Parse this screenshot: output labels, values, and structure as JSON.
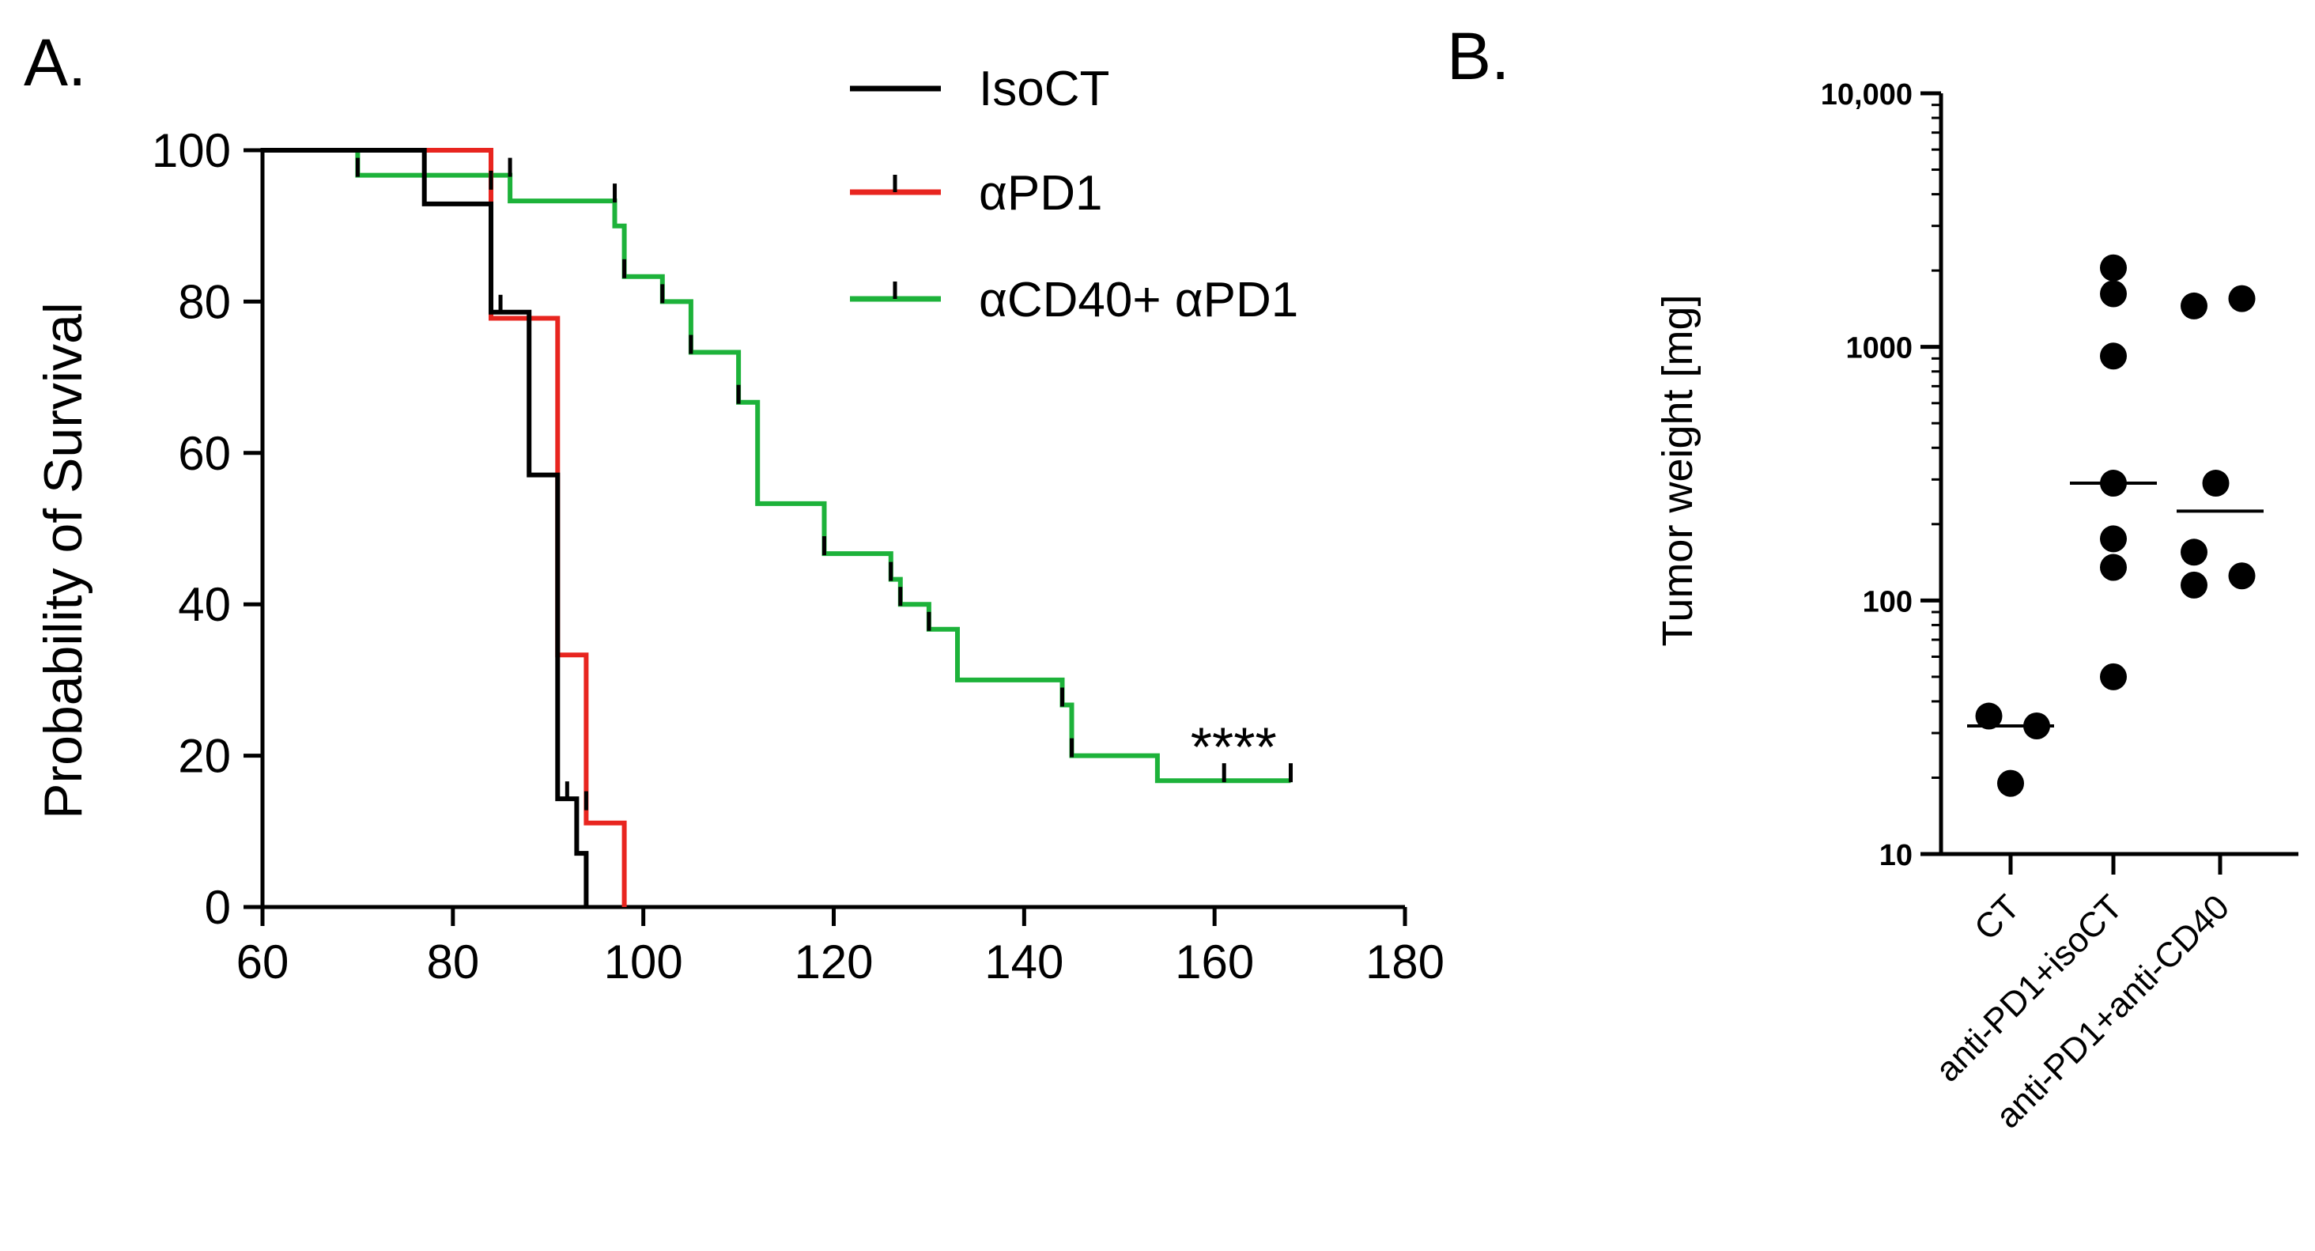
{
  "chart_data": [
    {
      "type": "line",
      "panel_label": "A.",
      "title": "",
      "xlabel": "",
      "ylabel": "Probability of Survival",
      "xlim": [
        60,
        180
      ],
      "ylim": [
        0,
        100
      ],
      "xticks": [
        60,
        80,
        100,
        120,
        140,
        160,
        180
      ],
      "yticks": [
        0,
        20,
        40,
        60,
        80,
        100
      ],
      "legend_position": "top",
      "annotation": "****",
      "annotation_pos": {
        "x": 162,
        "y": 22
      },
      "series": [
        {
          "name": "IsoCT",
          "color": "#000000",
          "steps": [
            [
              60,
              100
            ],
            [
              77,
              100
            ],
            [
              77,
              92.9
            ],
            [
              84,
              92.9
            ],
            [
              84,
              78.6
            ],
            [
              88,
              78.6
            ],
            [
              88,
              57.1
            ],
            [
              91,
              57.1
            ],
            [
              91,
              14.3
            ],
            [
              93,
              14.3
            ],
            [
              93,
              7.1
            ],
            [
              94,
              7.1
            ],
            [
              94,
              0
            ]
          ],
          "censored": [
            [
              85,
              78.6
            ],
            [
              92,
              14.3
            ]
          ]
        },
        {
          "name": "αPD1",
          "color": "#e8251f",
          "steps": [
            [
              60,
              100
            ],
            [
              84,
              100
            ],
            [
              84,
              77.8
            ],
            [
              91,
              77.8
            ],
            [
              91,
              33.3
            ],
            [
              94,
              33.3
            ],
            [
              94,
              11.1
            ],
            [
              98,
              11.1
            ],
            [
              98,
              0
            ]
          ],
          "censored": [
            [
              84,
              95
            ],
            [
              94,
              13
            ]
          ]
        },
        {
          "name": "αCD40+ αPD1",
          "color": "#1db23a",
          "steps": [
            [
              60,
              100
            ],
            [
              70,
              100
            ],
            [
              70,
              96.7
            ],
            [
              86,
              96.7
            ],
            [
              86,
              93.3
            ],
            [
              97,
              93.3
            ],
            [
              97,
              90
            ],
            [
              98,
              90
            ],
            [
              98,
              83.3
            ],
            [
              102,
              83.3
            ],
            [
              102,
              80
            ],
            [
              105,
              80
            ],
            [
              105,
              73.3
            ],
            [
              110,
              73.3
            ],
            [
              110,
              66.7
            ],
            [
              112,
              66.7
            ],
            [
              112,
              53.3
            ],
            [
              119,
              53.3
            ],
            [
              119,
              46.7
            ],
            [
              126,
              46.7
            ],
            [
              126,
              43.3
            ],
            [
              127,
              43.3
            ],
            [
              127,
              40
            ],
            [
              130,
              40
            ],
            [
              130,
              36.7
            ],
            [
              133,
              36.7
            ],
            [
              133,
              30
            ],
            [
              144,
              30
            ],
            [
              144,
              26.7
            ],
            [
              145,
              26.7
            ],
            [
              145,
              20
            ],
            [
              154,
              20
            ],
            [
              154,
              16.7
            ],
            [
              168,
              16.7
            ]
          ],
          "censored": [
            [
              70,
              96.7
            ],
            [
              86,
              96.7
            ],
            [
              97,
              93.3
            ],
            [
              98,
              83.3
            ],
            [
              102,
              80
            ],
            [
              105,
              73.3
            ],
            [
              110,
              66.7
            ],
            [
              119,
              46.7
            ],
            [
              126,
              43.3
            ],
            [
              127,
              40
            ],
            [
              130,
              36.7
            ],
            [
              144,
              26.7
            ],
            [
              145,
              20
            ],
            [
              161,
              16.7
            ],
            [
              168,
              16.7
            ]
          ]
        }
      ]
    },
    {
      "type": "scatter",
      "panel_label": "B.",
      "title": "",
      "xlabel": "",
      "ylabel": "Tumor weight [mg]",
      "yscale": "log",
      "ylim": [
        10,
        10000
      ],
      "yticks": [
        10,
        100,
        1000,
        10000
      ],
      "ytick_labels": [
        "10",
        "100",
        "1000",
        "10,000"
      ],
      "categories": [
        "CT",
        "anti-PD1+isoCT",
        "anti-PD1+anti-CD40"
      ],
      "groups": [
        {
          "category": "CT",
          "values": [
            35,
            32,
            19
          ],
          "offsets": [
            -0.25,
            0.3,
            0.0
          ],
          "median": 32
        },
        {
          "category": "anti-PD1+isoCT",
          "values": [
            2050,
            1620,
            920,
            290,
            175,
            135,
            50
          ],
          "offsets": [
            0,
            0,
            0,
            0,
            0,
            0,
            0
          ],
          "median": 290
        },
        {
          "category": "anti-PD1+anti-CD40",
          "values": [
            1450,
            1550,
            290,
            155,
            115,
            125
          ],
          "offsets": [
            -0.3,
            0.25,
            -0.05,
            -0.3,
            -0.3,
            0.25
          ],
          "median": 225
        }
      ],
      "marker_color": "#000000"
    }
  ]
}
